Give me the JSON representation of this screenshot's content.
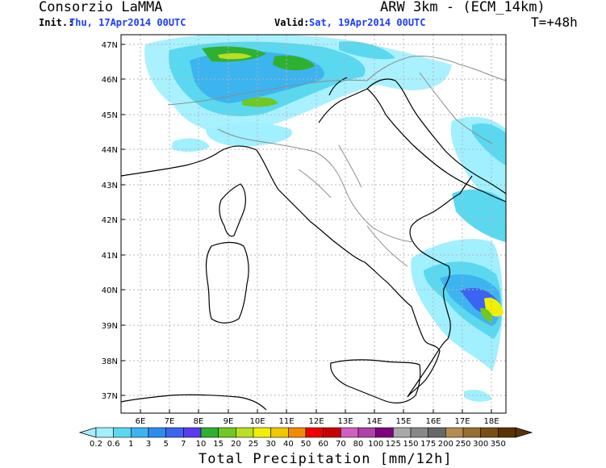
{
  "header": {
    "org": "Consorzio LaMMA",
    "model": "ARW 3km - (ECM_14km)",
    "init_label": "Init.:",
    "init_value": "Thu, 17Apr2014 00UTC",
    "valid_label": "Valid:",
    "valid_value": "Sat, 19Apr2014 00UTC",
    "lead": "T=+48h"
  },
  "map": {
    "lat_labels": [
      "47N",
      "46N",
      "45N",
      "44N",
      "43N",
      "42N",
      "41N",
      "40N",
      "39N",
      "38N",
      "37N"
    ],
    "lon_labels": [
      "6E",
      "7E",
      "8E",
      "9E",
      "10E",
      "11E",
      "12E",
      "13E",
      "14E",
      "15E",
      "16E",
      "17E",
      "18E"
    ],
    "grid": true
  },
  "colorbar": {
    "title": "Total Precipitation [mm/12h]",
    "thresholds": [
      "0.2",
      "0.6",
      "1",
      "3",
      "5",
      "7",
      "10",
      "15",
      "20",
      "25",
      "30",
      "40",
      "50",
      "60",
      "70",
      "80",
      "100",
      "125",
      "150",
      "175",
      "200",
      "250",
      "300",
      "350"
    ],
    "colors": [
      "#a0f0ff",
      "#5ad8f0",
      "#3cb4f0",
      "#2e8cf0",
      "#3c64f0",
      "#5a3cf0",
      "#30b030",
      "#70c820",
      "#b8e020",
      "#f0f000",
      "#f0c800",
      "#f08c00",
      "#f00000",
      "#c80000",
      "#d060c0",
      "#b040a8",
      "#800080",
      "#a8a8a8",
      "#888888",
      "#686868",
      "#b48c50",
      "#966e32",
      "#785014",
      "#5a3200"
    ]
  }
}
